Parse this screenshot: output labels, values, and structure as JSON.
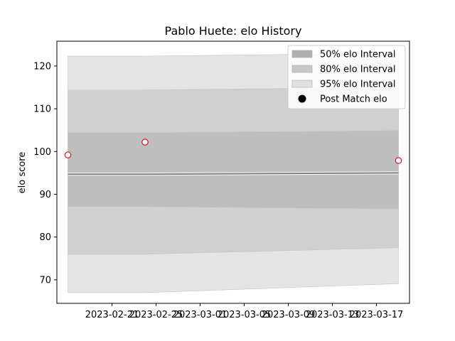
{
  "chart_data": {
    "type": "line",
    "title": "Pablo Huete: elo History",
    "xlabel": "",
    "ylabel": "elo score",
    "xlim": [
      "2023-02-16",
      "2023-03-20"
    ],
    "ylim": [
      64.5,
      125.8
    ],
    "y_ticks": [
      70,
      80,
      90,
      100,
      110,
      120
    ],
    "x_ticks": [
      "2023-02-21",
      "2023-02-25",
      "2023-03-01",
      "2023-03-05",
      "2023-03-09",
      "2023-03-13",
      "2023-03-17"
    ],
    "grid": false,
    "legend": {
      "placement": "top-right",
      "entries": [
        "50% elo Interval",
        "80% elo Interval",
        "95% elo Interval",
        "Post Match elo"
      ]
    },
    "x": [
      "2023-02-17",
      "2023-02-24",
      "2023-03-19"
    ],
    "mean": [
      94.7,
      94.7,
      95.0
    ],
    "bands": [
      {
        "name": "95% elo Interval",
        "color": "#e4e4e4",
        "lower": [
          67.0,
          67.0,
          69.1
        ],
        "upper": [
          122.3,
          122.3,
          123.0
        ]
      },
      {
        "name": "80% elo Interval",
        "color": "#d0d0d0",
        "lower": [
          76.0,
          76.0,
          77.5
        ],
        "upper": [
          114.4,
          114.4,
          115.0
        ]
      },
      {
        "name": "50% elo Interval",
        "color": "#bebebe",
        "lower": [
          87.1,
          87.1,
          86.6
        ],
        "upper": [
          104.4,
          104.4,
          104.9
        ]
      }
    ],
    "points": {
      "name": "Post Match elo",
      "x": [
        "2023-02-17",
        "2023-02-24",
        "2023-03-19"
      ],
      "y": [
        99.2,
        102.2,
        97.9
      ]
    },
    "colors": {
      "mean_line": "#7f7f7f",
      "marker_edge": "#e8101b",
      "marker_face": "#ffffff"
    }
  }
}
